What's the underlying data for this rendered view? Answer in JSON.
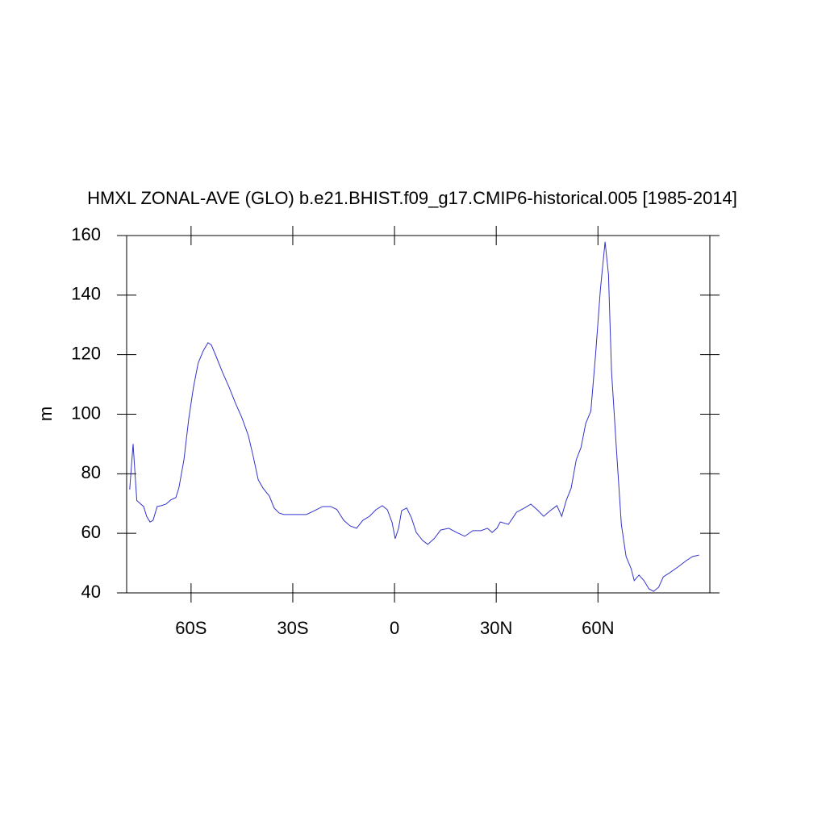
{
  "chart_data": {
    "type": "line",
    "title": "HMXL ZONAL-AVE (GLO) b.e21.BHIST.f09_g17.CMIP6-historical.005 [1985-2014]",
    "ylabel": "m",
    "xlim": [
      -79,
      93
    ],
    "ylim": [
      40,
      160
    ],
    "xticks": [
      {
        "value": -60,
        "label": "60S"
      },
      {
        "value": -30,
        "label": "30S"
      },
      {
        "value": 0,
        "label": "0"
      },
      {
        "value": 30,
        "label": "30N"
      },
      {
        "value": 60,
        "label": "60N"
      }
    ],
    "yticks": [
      40,
      60,
      80,
      100,
      120,
      140,
      160
    ],
    "series": [
      {
        "color": "#3333cc",
        "x": [
          -78.1,
          -77.1,
          -76.7,
          -76,
          -75,
          -74,
          -73.1,
          -72.1,
          -71.2,
          -70,
          -68.8,
          -67.4,
          -66,
          -64.5,
          -63.6,
          -62.1,
          -60.7,
          -59.3,
          -57.9,
          -56.4,
          -55,
          -54,
          -52.6,
          -50.7,
          -48.8,
          -46.9,
          -45,
          -43.1,
          -41.7,
          -40.2,
          -38.8,
          -36.9,
          -35.5,
          -34,
          -32.6,
          -30.7,
          -28.3,
          -26,
          -23.6,
          -21.2,
          -18.8,
          -17,
          -15,
          -13.1,
          -11.2,
          -9.3,
          -7.4,
          -5.5,
          -3.6,
          -2.1,
          -0.7,
          0.2,
          1.2,
          2.1,
          3.6,
          5,
          6.4,
          8.3,
          9.8,
          11.7,
          13.6,
          16,
          18.3,
          20.7,
          23.1,
          25.5,
          27.4,
          28.8,
          30.2,
          31.2,
          33.6,
          36,
          38.3,
          40.2,
          42.1,
          44,
          45.9,
          47.9,
          49.3,
          50.7,
          52.1,
          53.6,
          55,
          56.4,
          57.9,
          59.3,
          60.7,
          62.1,
          63.1,
          64,
          65.5,
          66.9,
          68.3,
          69.8,
          70.7,
          72.1,
          73.6,
          75,
          76.4,
          77.9,
          79.3,
          81.2,
          83.6,
          86,
          87.9,
          89.8
        ],
        "values": [
          74.7,
          90,
          83,
          71,
          70,
          69,
          65.7,
          63.8,
          64.4,
          69,
          69.3,
          69.8,
          71.2,
          72,
          75.2,
          84.7,
          98.3,
          109,
          117.2,
          121.3,
          124,
          123.2,
          119.4,
          114,
          109.1,
          103.7,
          98.8,
          92.8,
          86,
          78,
          75.2,
          72.5,
          68.5,
          66.8,
          66.3,
          66.3,
          66.3,
          66.3,
          67.6,
          69,
          69,
          68,
          64.4,
          62.5,
          61.7,
          64.4,
          65.7,
          67.9,
          69.3,
          67.9,
          63.6,
          58.2,
          61.7,
          67.6,
          68.5,
          65.2,
          60.3,
          57.6,
          56.3,
          58.2,
          61.1,
          61.7,
          60.3,
          59,
          60.9,
          60.9,
          61.7,
          60.3,
          61.7,
          63.8,
          63,
          67.1,
          68.5,
          69.8,
          67.9,
          65.7,
          67.6,
          69.3,
          65.7,
          71.2,
          75.2,
          84.7,
          88.8,
          96.9,
          101,
          120,
          141.6,
          157.9,
          147,
          114.5,
          87.4,
          63,
          52.2,
          48.1,
          44.1,
          46,
          44.1,
          41.4,
          40.5,
          41.9,
          45.4,
          46.8,
          48.7,
          50.8,
          52.2,
          52.7
        ]
      }
    ]
  }
}
